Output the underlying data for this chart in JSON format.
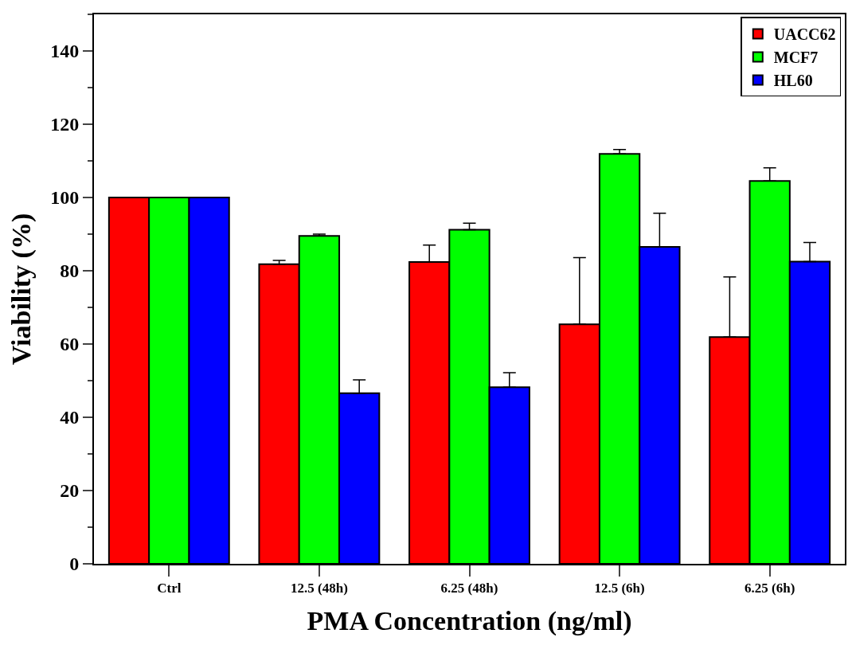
{
  "chart_data": {
    "type": "bar",
    "xlabel": "PMA Concentration (ng/ml)",
    "ylabel": "Viability (%)",
    "categories": [
      "Ctrl",
      "12.5 (48h)",
      "6.25 (48h)",
      "12.5 (6h)",
      "6.25 (6h)"
    ],
    "series": [
      {
        "name": "UACC62",
        "color": "#ff0000",
        "values": [
          100,
          81.8,
          82.4,
          65.4,
          61.9
        ],
        "errors": [
          null,
          [
            81.8,
            82.8
          ],
          [
            82.4,
            87.0
          ],
          [
            65.4,
            83.6
          ],
          [
            61.9,
            78.3
          ]
        ]
      },
      {
        "name": "MCF7",
        "color": "#00ff00",
        "values": [
          100,
          89.5,
          91.2,
          111.9,
          104.5
        ],
        "errors": [
          null,
          [
            89.5,
            90.0
          ],
          [
            91.2,
            93.0
          ],
          [
            111.9,
            113.1
          ],
          [
            104.5,
            108.1
          ]
        ]
      },
      {
        "name": "HL60",
        "color": "#0000ff",
        "values": [
          100,
          46.6,
          48.2,
          86.5,
          82.5
        ],
        "errors": [
          null,
          [
            46.6,
            50.2
          ],
          [
            48.2,
            52.2
          ],
          [
            86.5,
            95.7
          ],
          [
            82.5,
            87.7
          ]
        ]
      }
    ],
    "ylim": [
      0,
      150
    ],
    "yticks": [
      0,
      20,
      40,
      60,
      80,
      100,
      120,
      140
    ],
    "grid": false,
    "legend": "top right"
  }
}
